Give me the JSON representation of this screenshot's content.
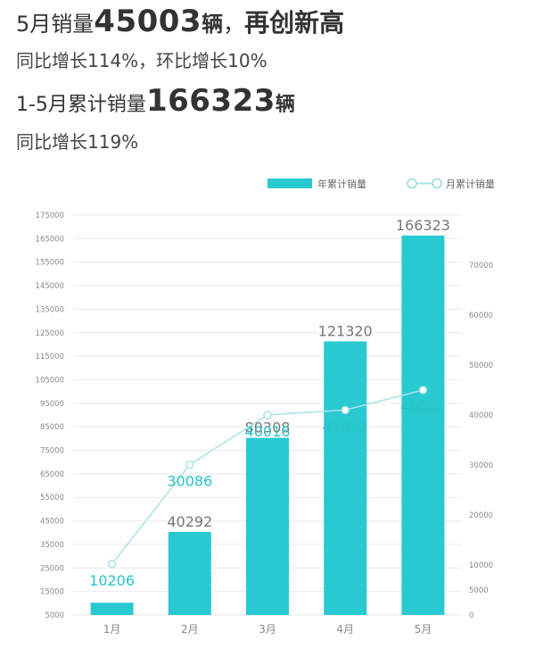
{
  "headline": {
    "line1_prefix": "5月销量",
    "line1_number": "45003",
    "line1_unit": "辆",
    "line1_sep": "，",
    "line1_suffix": "再创新高",
    "line2": "同比增长114%，环比增长10%",
    "line3_prefix": "1-5月累计销量",
    "line3_number": "166323",
    "line3_unit": "辆",
    "line4": "同比增长119%"
  },
  "colors": {
    "bar": "#29c9d2",
    "line": "#a9e2e5",
    "line_label": "#2ac3c9",
    "grid": "#e9e9e9"
  },
  "chart_data": {
    "type": "bar+line",
    "categories": [
      "1月",
      "2月",
      "3月",
      "4月",
      "5月"
    ],
    "series": [
      {
        "name": "年累计销量",
        "type": "bar",
        "axis": "left",
        "values": [
          10206,
          40292,
          80308,
          121320,
          166323
        ],
        "labels": [
          "",
          "40292",
          "80308",
          "121320",
          "166323"
        ]
      },
      {
        "name": "月累计销量",
        "type": "line",
        "axis": "right",
        "values": [
          10206,
          30086,
          40016,
          41012,
          45003
        ],
        "labels": [
          "10206",
          "30086",
          "40016",
          "41012",
          "45003"
        ]
      }
    ],
    "left_axis": {
      "min": 5000,
      "max": 175000,
      "ticks": [
        5000,
        15000,
        25000,
        35000,
        45000,
        55000,
        65000,
        75000,
        85000,
        95000,
        105000,
        115000,
        125000,
        135000,
        145000,
        155000,
        165000,
        175000
      ]
    },
    "right_axis": {
      "min": 0,
      "max": 80000,
      "ticks": [
        0,
        5000,
        10000,
        20000,
        30000,
        40000,
        50000,
        60000,
        70000
      ]
    },
    "legend": {
      "position": "top-right",
      "items": [
        "年累计销量",
        "月累计销量"
      ]
    }
  }
}
